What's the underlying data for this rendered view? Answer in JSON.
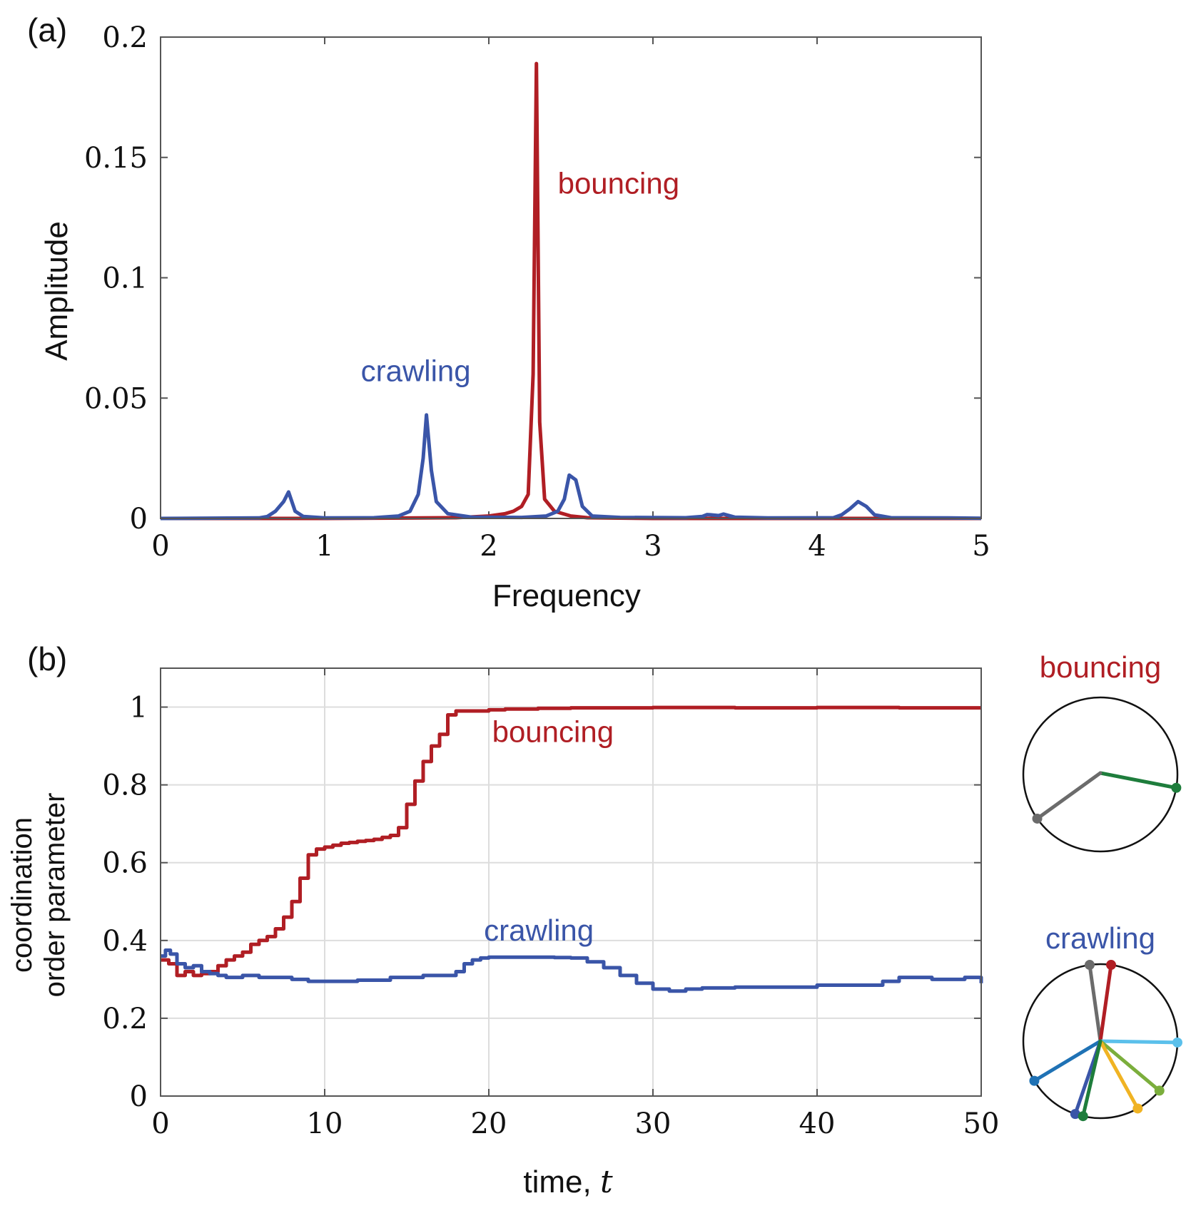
{
  "colors": {
    "bouncing": "#B01E24",
    "crawling": "#3A55A8",
    "axis": "#555555",
    "grid": "#dddddd",
    "text": "#111111"
  },
  "chart_data": [
    {
      "panel_label": "(a)",
      "type": "line",
      "title": "",
      "xlabel": "Frequency",
      "ylabel": "Amplitude",
      "xlim": [
        0,
        5
      ],
      "ylim": [
        0,
        0.2
      ],
      "xticks": [
        0,
        1,
        2,
        3,
        4,
        5
      ],
      "yticks": [
        0,
        0.05,
        0.1,
        0.15,
        0.2
      ],
      "xtick_labels": [
        "0",
        "1",
        "2",
        "3",
        "4",
        "5"
      ],
      "ytick_labels": [
        "0",
        "0.05",
        "0.1",
        "0.15",
        "0.2"
      ],
      "grid": false,
      "annotations": [
        {
          "text": "bouncing",
          "series": "bouncing",
          "x": 2.42,
          "y": 0.135
        },
        {
          "text": "crawling",
          "series": "crawling",
          "x": 1.22,
          "y": 0.057
        }
      ],
      "series": [
        {
          "name": "bouncing",
          "x": [
            0,
            1.0,
            1.8,
            2.0,
            2.1,
            2.15,
            2.2,
            2.24,
            2.27,
            2.29,
            2.31,
            2.34,
            2.4,
            2.5,
            2.6,
            3.0,
            5.0
          ],
          "y": [
            0,
            0,
            0.0003,
            0.001,
            0.002,
            0.003,
            0.005,
            0.01,
            0.06,
            0.189,
            0.04,
            0.008,
            0.003,
            0.001,
            0.0003,
            0,
            0
          ]
        },
        {
          "name": "crawling",
          "x": [
            0,
            0.6,
            0.65,
            0.7,
            0.75,
            0.78,
            0.82,
            0.87,
            1.0,
            1.3,
            1.45,
            1.52,
            1.57,
            1.6,
            1.62,
            1.65,
            1.68,
            1.75,
            1.9,
            2.2,
            2.35,
            2.42,
            2.46,
            2.49,
            2.53,
            2.57,
            2.63,
            2.8,
            3.2,
            3.3,
            3.33,
            3.35,
            3.4,
            3.43,
            3.5,
            3.7,
            4.1,
            4.15,
            4.2,
            4.25,
            4.3,
            4.35,
            4.45,
            4.8,
            5.0
          ],
          "y": [
            0,
            0.0002,
            0.0008,
            0.003,
            0.007,
            0.011,
            0.003,
            0.0008,
            0.0002,
            0.0003,
            0.001,
            0.003,
            0.01,
            0.025,
            0.043,
            0.02,
            0.007,
            0.002,
            0.0005,
            0.0004,
            0.001,
            0.003,
            0.008,
            0.018,
            0.016,
            0.005,
            0.001,
            0.0004,
            0.0003,
            0.0008,
            0.0016,
            0.0015,
            0.0012,
            0.0018,
            0.0005,
            0.0002,
            0.0003,
            0.0015,
            0.004,
            0.007,
            0.005,
            0.0015,
            0.0003,
            0.0002,
            0.0001
          ]
        }
      ]
    },
    {
      "panel_label": "(b)",
      "type": "line",
      "title": "",
      "xlabel_text": "time, ",
      "xlabel_var": "t",
      "ylabel_line1": "coordination",
      "ylabel_line2": "order parameter",
      "xlim": [
        0,
        50
      ],
      "ylim": [
        0,
        1.1
      ],
      "xticks": [
        0,
        10,
        20,
        30,
        40,
        50
      ],
      "yticks": [
        0,
        0.2,
        0.4,
        0.6,
        0.8,
        1
      ],
      "xtick_labels": [
        "0",
        "10",
        "20",
        "30",
        "40",
        "50"
      ],
      "ytick_labels": [
        "0",
        "0.2",
        "0.4",
        "0.6",
        "0.8",
        "1"
      ],
      "grid": true,
      "annotations": [
        {
          "text": "bouncing",
          "series": "bouncing",
          "x": 20.2,
          "y": 0.91
        },
        {
          "text": "crawling",
          "series": "crawling",
          "x": 19.7,
          "y": 0.4
        }
      ],
      "series": [
        {
          "name": "bouncing",
          "x": [
            0,
            0.5,
            1,
            1.5,
            2,
            2.5,
            3,
            3.5,
            4,
            4.5,
            5,
            5.5,
            6,
            6.5,
            7,
            7.5,
            8,
            8.5,
            9,
            9.5,
            10,
            10.5,
            11,
            11.5,
            12,
            12.5,
            13,
            13.5,
            14,
            14.5,
            15,
            15.5,
            16,
            16.5,
            17,
            17.5,
            18,
            19,
            20,
            21,
            23,
            25,
            30,
            35,
            40,
            45,
            50
          ],
          "y": [
            0.35,
            0.34,
            0.31,
            0.32,
            0.31,
            0.315,
            0.32,
            0.335,
            0.35,
            0.36,
            0.37,
            0.39,
            0.4,
            0.41,
            0.43,
            0.46,
            0.5,
            0.56,
            0.62,
            0.635,
            0.64,
            0.645,
            0.65,
            0.652,
            0.655,
            0.657,
            0.66,
            0.665,
            0.67,
            0.69,
            0.75,
            0.81,
            0.86,
            0.9,
            0.93,
            0.98,
            0.99,
            0.99,
            0.993,
            0.995,
            0.997,
            0.998,
            0.999,
            0.998,
            0.999,
            0.998,
            0.998
          ]
        },
        {
          "name": "crawling",
          "x": [
            0,
            0.3,
            0.6,
            1,
            1.5,
            2,
            2.5,
            3,
            3.5,
            4,
            5,
            6,
            7,
            8,
            9,
            10,
            12,
            14,
            16,
            18,
            18.5,
            19,
            19.5,
            20,
            22,
            24,
            25,
            26,
            27,
            28,
            29,
            30,
            31,
            32,
            33,
            35,
            40,
            44,
            45,
            47,
            49,
            50
          ],
          "y": [
            0.36,
            0.375,
            0.365,
            0.34,
            0.33,
            0.335,
            0.32,
            0.315,
            0.31,
            0.305,
            0.31,
            0.305,
            0.305,
            0.3,
            0.295,
            0.295,
            0.298,
            0.305,
            0.31,
            0.32,
            0.34,
            0.35,
            0.355,
            0.357,
            0.357,
            0.356,
            0.355,
            0.345,
            0.33,
            0.31,
            0.29,
            0.275,
            0.27,
            0.275,
            0.278,
            0.28,
            0.285,
            0.295,
            0.305,
            0.3,
            0.305,
            0.29
          ]
        }
      ]
    }
  ],
  "insets": [
    {
      "label": "bouncing",
      "series": "bouncing",
      "arms": [
        {
          "angle_deg": -10,
          "color": "#1E7D3C"
        },
        {
          "angle_deg": 215,
          "color": "#6b6b6b"
        }
      ]
    },
    {
      "label": "crawling",
      "series": "crawling",
      "arms": [
        {
          "angle_deg": 98,
          "color": "#6b6b6b"
        },
        {
          "angle_deg": 82,
          "color": "#B01E24"
        },
        {
          "angle_deg": -1,
          "color": "#5BC0EB"
        },
        {
          "angle_deg": -40,
          "color": "#7BAE3C"
        },
        {
          "angle_deg": -61,
          "color": "#F0B323"
        },
        {
          "angle_deg": 211,
          "color": "#1F72B5"
        },
        {
          "angle_deg": 251,
          "color": "#3A55A8"
        },
        {
          "angle_deg": 257,
          "color": "#1E7D3C"
        }
      ]
    }
  ]
}
